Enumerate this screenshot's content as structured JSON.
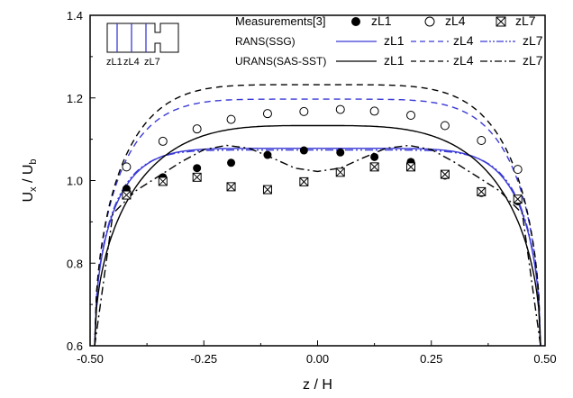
{
  "chart_data": {
    "type": "line",
    "title": "",
    "xlabel": "z / H",
    "ylabel": {
      "main": "U",
      "sub_x": "x",
      "mid": " / U",
      "sub_b": "b"
    },
    "xlim": [
      -0.5,
      0.5
    ],
    "ylim": [
      0.6,
      1.4
    ],
    "xticks": [
      -0.5,
      -0.25,
      0.0,
      0.25,
      0.5
    ],
    "xtick_labels": [
      "-0.50",
      "-0.25",
      "0.00",
      "0.25",
      "0.50"
    ],
    "yticks": [
      0.6,
      0.8,
      1.0,
      1.2,
      1.4
    ],
    "ytick_labels": [
      "0.6",
      "0.8",
      "1.0",
      "1.2",
      "1.4"
    ],
    "grid": false,
    "legend_placement": "top-right",
    "legend": {
      "groups": [
        {
          "label": "Measurements[3]",
          "items": [
            {
              "series": "exp_zL1",
              "text": "zL1"
            },
            {
              "series": "exp_zL4",
              "text": "zL4"
            },
            {
              "series": "exp_zL7",
              "text": "zL7"
            }
          ]
        },
        {
          "label": "RANS(SSG)",
          "items": [
            {
              "series": "rans_zL1",
              "text": "zL1"
            },
            {
              "series": "rans_zL4",
              "text": "zL4"
            },
            {
              "series": "rans_zL7",
              "text": "zL7"
            }
          ]
        },
        {
          "label": "URANS(SAS-SST)",
          "items": [
            {
              "series": "urans_zL1",
              "text": "zL1"
            },
            {
              "series": "urans_zL4",
              "text": "zL4"
            },
            {
              "series": "urans_zL7",
              "text": "zL7"
            }
          ]
        }
      ]
    },
    "inset": {
      "labels": [
        "zL1",
        "zL4",
        "zL7"
      ],
      "line_color": "#3a3ad6"
    },
    "colors": {
      "blue": "#3a3ad6",
      "black": "#000000"
    },
    "series": [
      {
        "id": "exp_zL1",
        "kind": "marker",
        "marker": "filled-circle",
        "color": "#000000",
        "x": [
          -0.42,
          -0.34,
          -0.265,
          -0.19,
          -0.11,
          -0.03,
          0.05,
          0.125,
          0.205,
          0.28,
          0.36,
          0.44
        ],
        "y": [
          0.98,
          1.008,
          1.03,
          1.043,
          1.062,
          1.073,
          1.068,
          1.057,
          1.045,
          1.012,
          0.97,
          0.95
        ]
      },
      {
        "id": "exp_zL4",
        "kind": "marker",
        "marker": "open-circle",
        "color": "#000000",
        "x": [
          -0.42,
          -0.34,
          -0.265,
          -0.19,
          -0.11,
          -0.03,
          0.05,
          0.125,
          0.205,
          0.28,
          0.36,
          0.44
        ],
        "y": [
          1.033,
          1.095,
          1.125,
          1.148,
          1.162,
          1.167,
          1.172,
          1.168,
          1.158,
          1.133,
          1.097,
          1.027
        ]
      },
      {
        "id": "exp_zL7",
        "kind": "marker",
        "marker": "crossed-square",
        "color": "#000000",
        "x": [
          -0.42,
          -0.34,
          -0.265,
          -0.19,
          -0.11,
          -0.03,
          0.05,
          0.125,
          0.205,
          0.28,
          0.36,
          0.44
        ],
        "y": [
          0.965,
          0.998,
          1.008,
          0.985,
          0.978,
          0.997,
          1.02,
          1.033,
          1.033,
          1.015,
          0.973,
          0.955
        ]
      },
      {
        "id": "rans_zL1",
        "kind": "line",
        "dash": "solid",
        "color": "#3a3ad6",
        "peak": 1.078,
        "exponent": 7
      },
      {
        "id": "rans_zL4",
        "kind": "line",
        "dash": "dash",
        "color": "#3a3ad6",
        "peak": 1.197,
        "exponent": 5.5
      },
      {
        "id": "rans_zL7",
        "kind": "line",
        "dash": "dashdotdot",
        "color": "#3a3ad6",
        "peak": 1.074,
        "exponent": 7.5
      },
      {
        "id": "urans_zL1",
        "kind": "line",
        "dash": "solid",
        "color": "#000000",
        "peak": 1.133,
        "exponent": 3.6
      },
      {
        "id": "urans_zL4",
        "kind": "line",
        "dash": "dash",
        "color": "#000000",
        "peak": 1.232,
        "exponent": 5
      },
      {
        "id": "urans_zL7",
        "kind": "line",
        "dash": "dashdot",
        "color": "#000000",
        "x": [
          -0.49,
          -0.45,
          -0.4,
          -0.35,
          -0.3,
          -0.25,
          -0.2,
          -0.15,
          -0.1,
          -0.05,
          0.0,
          0.05,
          0.1,
          0.15,
          0.2,
          0.25,
          0.3,
          0.35,
          0.4,
          0.45,
          0.49
        ],
        "y": [
          0.6,
          0.92,
          0.975,
          1.01,
          1.045,
          1.075,
          1.085,
          1.078,
          1.055,
          1.03,
          1.022,
          1.03,
          1.055,
          1.078,
          1.085,
          1.075,
          1.045,
          1.01,
          0.975,
          0.92,
          0.6
        ]
      }
    ]
  }
}
